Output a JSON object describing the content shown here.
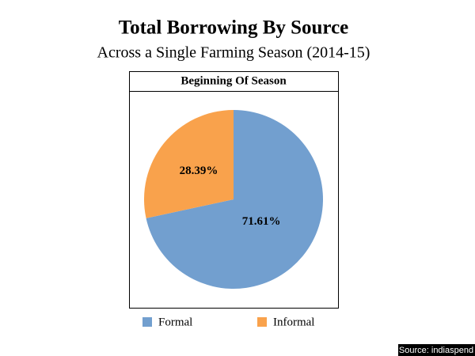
{
  "chart_data": {
    "type": "pie",
    "title": "Total Borrowing By Source",
    "subtitle": "Across a Single Farming Season (2014-15)",
    "panel_title": "Beginning Of Season",
    "categories": [
      "Formal",
      "Informal"
    ],
    "values": [
      71.61,
      28.39
    ],
    "value_labels": [
      "71.61%",
      "28.39%"
    ],
    "colors": [
      "#729fcf",
      "#f9a24c"
    ],
    "source": "Source: indiaspend"
  }
}
